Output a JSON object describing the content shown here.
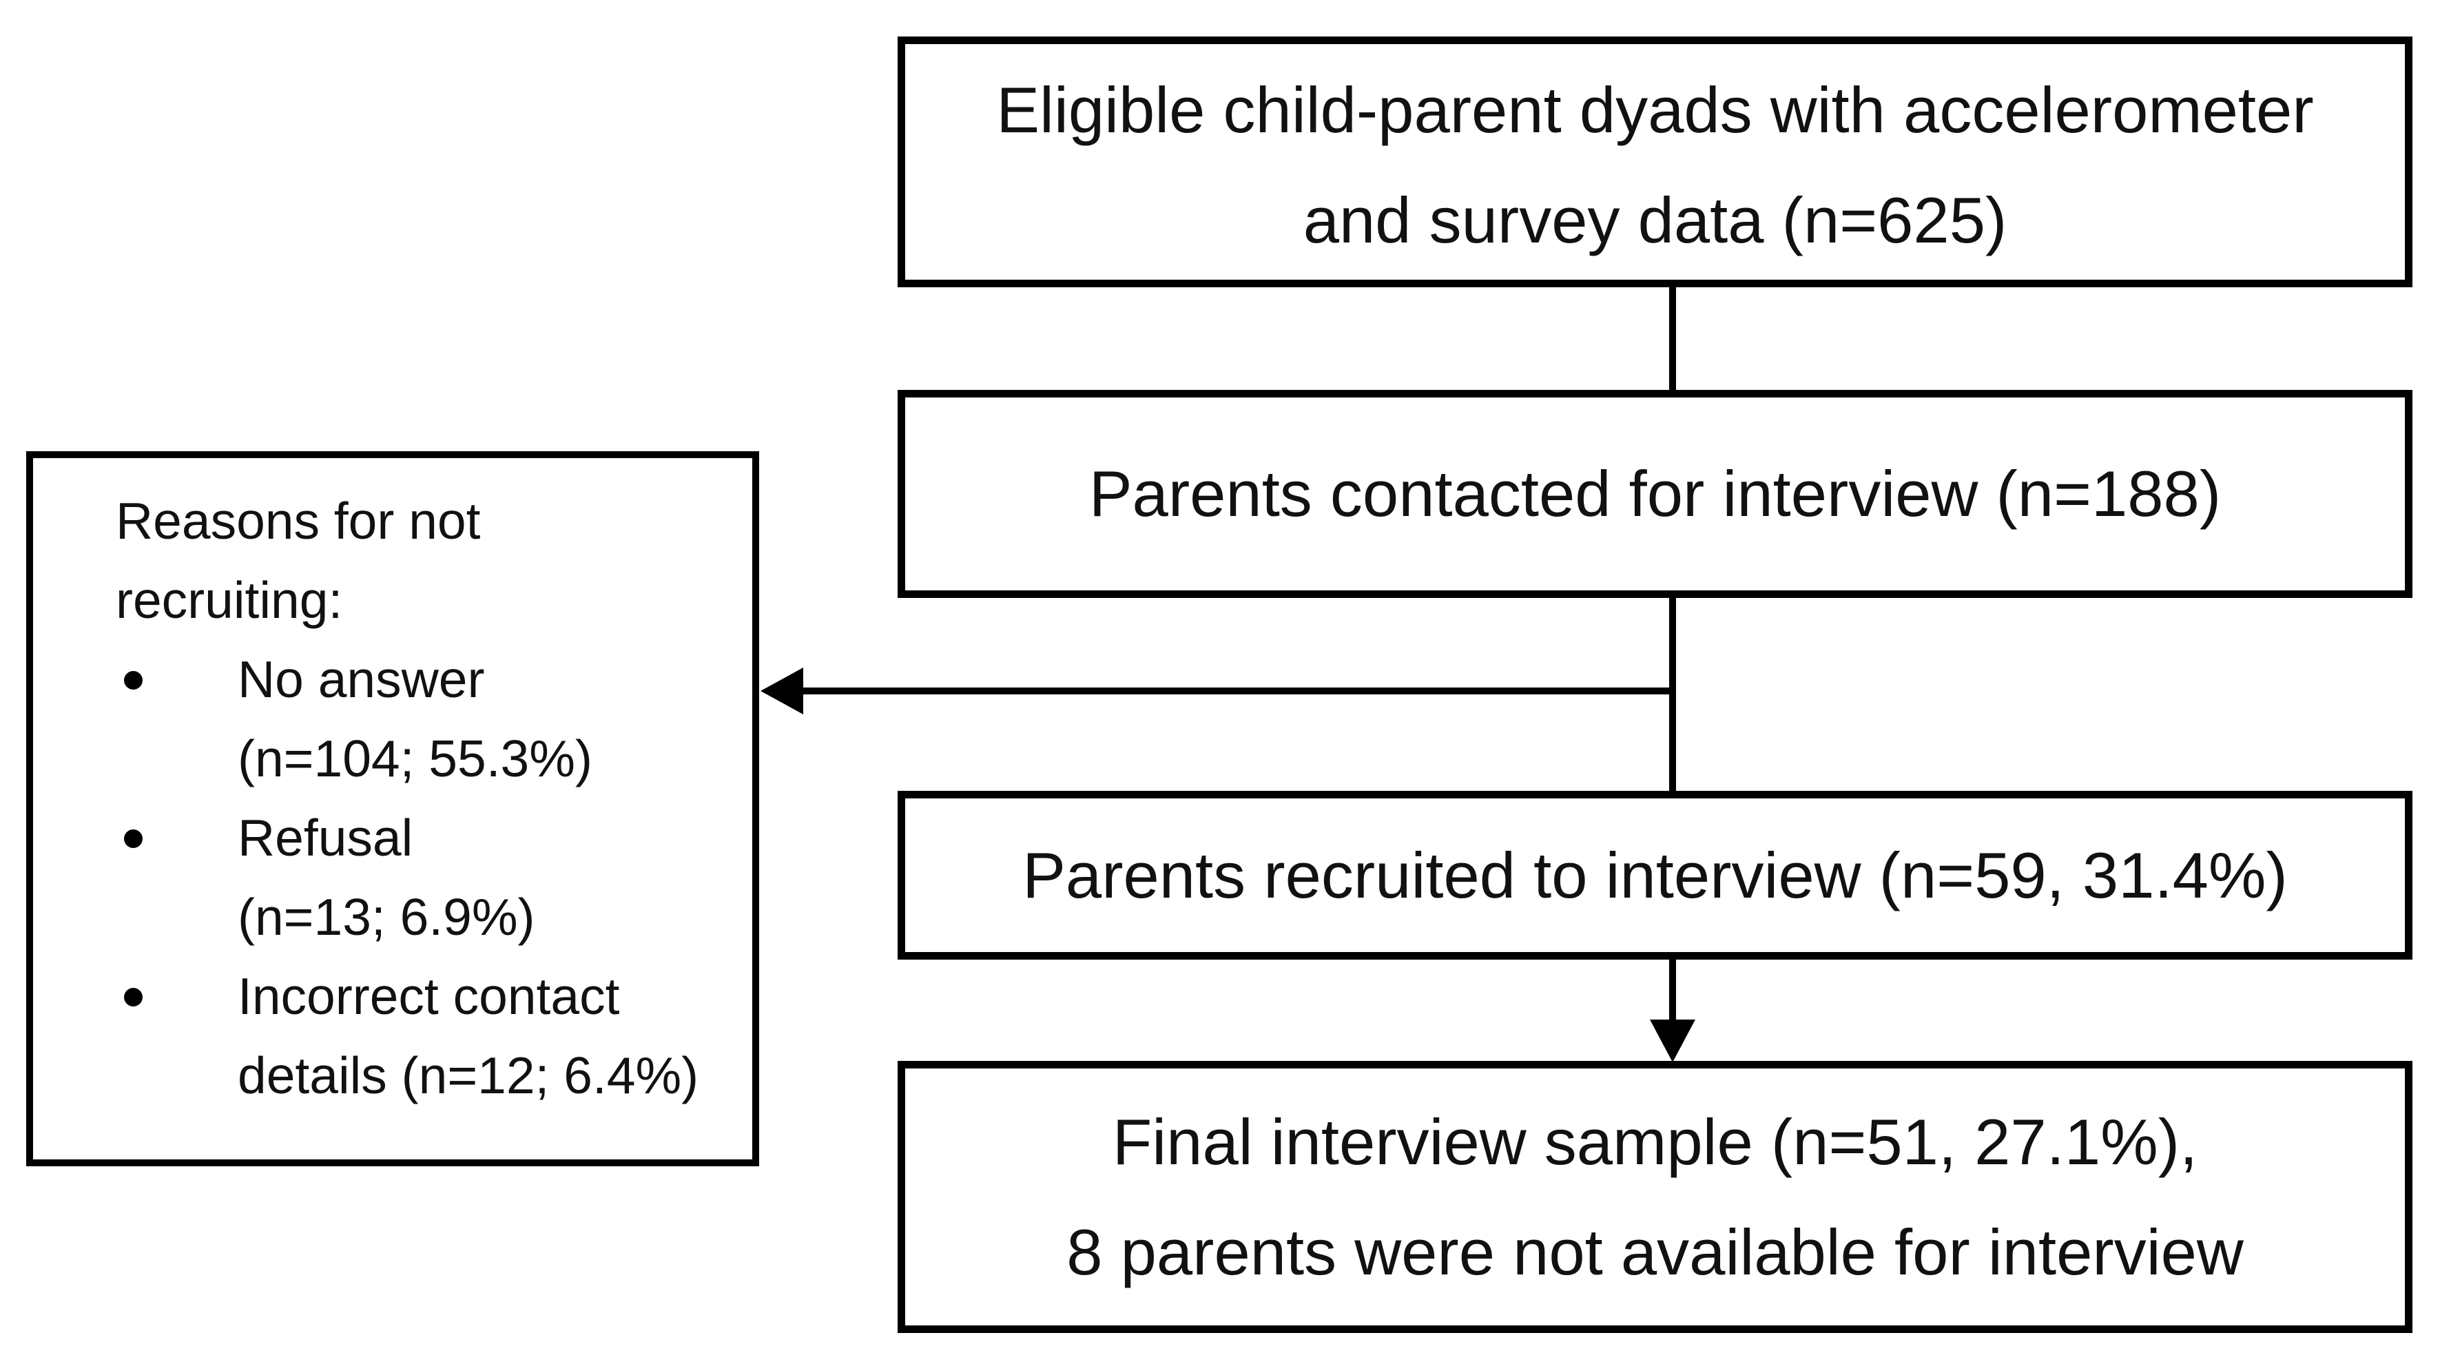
{
  "boxes": {
    "eligible": {
      "lines": [
        "Eligible child-parent dyads with accelerometer",
        "and survey data (n=625)"
      ]
    },
    "contacted": {
      "lines": [
        "Parents contacted for interview (n=188)"
      ]
    },
    "recruited": {
      "lines": [
        "Parents recruited to interview (n=59, 31.4%)"
      ]
    },
    "final": {
      "lines": [
        "Final interview sample (n=51, 27.1%),",
        "8 parents were not available for interview"
      ]
    },
    "reasons": {
      "title_lines": [
        "Reasons for not",
        "recruiting:"
      ],
      "items": [
        {
          "lines": [
            "No answer",
            "(n=104; 55.3%)"
          ]
        },
        {
          "lines": [
            "Refusal",
            "(n=13; 6.9%)"
          ]
        },
        {
          "lines": [
            "Incorrect contact",
            "details (n=12; 6.4%)"
          ]
        }
      ]
    }
  },
  "colors": {
    "line": "#000000",
    "text": "#111111",
    "background": "#ffffff"
  }
}
